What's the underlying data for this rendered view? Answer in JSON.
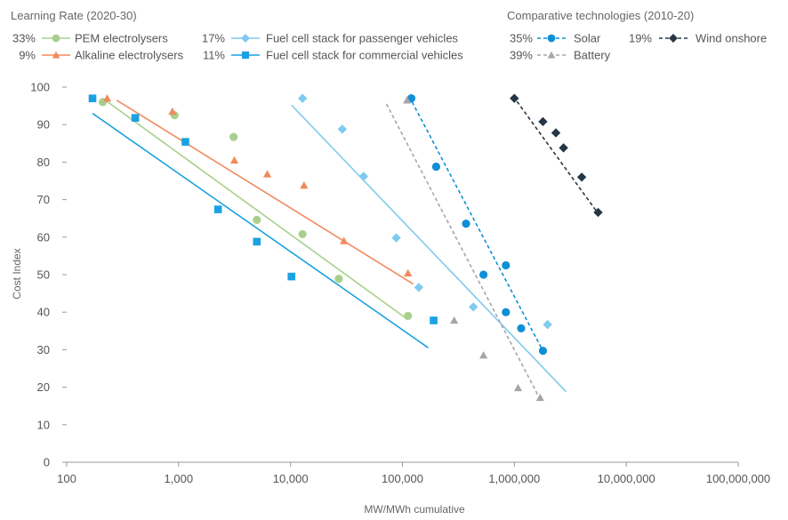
{
  "chart_data": {
    "type": "scatter",
    "xlabel": "MW/MWh cumulative",
    "ylabel": "Cost Index",
    "xscale": "log",
    "xlim": [
      100,
      100000000
    ],
    "ylim": [
      0,
      100
    ],
    "x_ticks": [
      100,
      1000,
      10000,
      100000,
      1000000,
      10000000,
      100000000
    ],
    "x_tick_labels": [
      "100",
      "1,000",
      "10,000",
      "100,000",
      "1,000,000",
      "10,000,000",
      "100,000,000"
    ],
    "y_ticks": [
      0,
      10,
      20,
      30,
      40,
      50,
      60,
      70,
      80,
      90,
      100
    ],
    "y_tick_labels": [
      "0",
      "10",
      "20",
      "30",
      "40",
      "50",
      "60",
      "70",
      "80",
      "90",
      "100"
    ],
    "grid": false,
    "legend_groups": [
      {
        "title": "Learning Rate (2020-30)"
      },
      {
        "title": "Comparative technologies (2010-20)"
      }
    ],
    "series": [
      {
        "name": "PEM electrolysers",
        "learning_rate": "33%",
        "group": 0,
        "color": "#a8d08d",
        "marker": "circle",
        "line": "solid",
        "points": [
          [
            210,
            96
          ],
          [
            920,
            92.5
          ],
          [
            3100,
            86.7
          ],
          [
            5000,
            64.6
          ],
          [
            12800,
            60.8
          ],
          [
            27000,
            48.9
          ],
          [
            112000,
            39
          ]
        ],
        "trend": [
          [
            210,
            97
          ],
          [
            112000,
            38
          ]
        ]
      },
      {
        "name": "Alkaline electrolysers",
        "learning_rate": "9%",
        "group": 0,
        "color": "#f08a5d",
        "marker": "triangle",
        "line": "solid",
        "points": [
          [
            230,
            97
          ],
          [
            880,
            93.5
          ],
          [
            3150,
            80.5
          ],
          [
            6200,
            76.8
          ],
          [
            13200,
            73.8
          ],
          [
            30000,
            59
          ],
          [
            112000,
            50.4
          ]
        ],
        "trend": [
          [
            280,
            96.5
          ],
          [
            125000,
            47.5
          ]
        ]
      },
      {
        "name": "Fuel cell stack for passenger vehicles",
        "learning_rate": "17%",
        "group": 0,
        "color": "#7fcaef",
        "marker": "diamond",
        "line": "solid",
        "points": [
          [
            12800,
            97
          ],
          [
            29000,
            88.8
          ],
          [
            45000,
            76.2
          ],
          [
            88000,
            59.8
          ],
          [
            140000,
            46.6
          ],
          [
            430000,
            41.4
          ],
          [
            1980000,
            36.7
          ]
        ],
        "trend": [
          [
            10200,
            95.2
          ],
          [
            2900000,
            18.8
          ]
        ]
      },
      {
        "name": "Fuel cell stack for commercial vehicles",
        "learning_rate": "11%",
        "group": 0,
        "color": "#1ba1e2",
        "marker": "square",
        "line": "solid",
        "points": [
          [
            170,
            97
          ],
          [
            410,
            91.8
          ],
          [
            1150,
            85.4
          ],
          [
            2250,
            67.4
          ],
          [
            5000,
            58.8
          ],
          [
            10200,
            49.5
          ],
          [
            190000,
            37.8
          ]
        ],
        "trend": [
          [
            170,
            93
          ],
          [
            170000,
            30.5
          ]
        ]
      },
      {
        "name": "Solar",
        "learning_rate": "35%",
        "group": 1,
        "color": "#0e8fd6",
        "marker": "circle",
        "line": "dashed",
        "points": [
          [
            120000,
            97
          ],
          [
            200000,
            78.8
          ],
          [
            370000,
            63.6
          ],
          [
            530000,
            50
          ],
          [
            840000,
            52.5
          ],
          [
            840000,
            40
          ],
          [
            1150000,
            35.7
          ],
          [
            1800000,
            29.7
          ]
        ],
        "trend": [
          [
            115000,
            97.5
          ],
          [
            1850000,
            29
          ]
        ]
      },
      {
        "name": "Battery",
        "learning_rate": "39%",
        "group": 1,
        "color": "#a6a6a6",
        "marker": "triangle",
        "line": "dashed",
        "points": [
          [
            110000,
            96.5
          ],
          [
            290000,
            37.8
          ],
          [
            530000,
            28.5
          ],
          [
            1080000,
            19.8
          ],
          [
            1700000,
            17.2
          ]
        ],
        "trend": [
          [
            72000,
            95.5
          ],
          [
            1650000,
            17.5
          ]
        ]
      },
      {
        "name": "Wind onshore",
        "learning_rate": "19%",
        "group": 1,
        "color": "#263645",
        "marker": "diamond",
        "line": "dashed",
        "points": [
          [
            1000000,
            97
          ],
          [
            1800000,
            90.8
          ],
          [
            2350000,
            87.8
          ],
          [
            2750000,
            83.8
          ],
          [
            4000000,
            76
          ],
          [
            5600000,
            66.6
          ]
        ],
        "trend": [
          [
            980000,
            97.5
          ],
          [
            5700000,
            66
          ]
        ]
      }
    ]
  }
}
